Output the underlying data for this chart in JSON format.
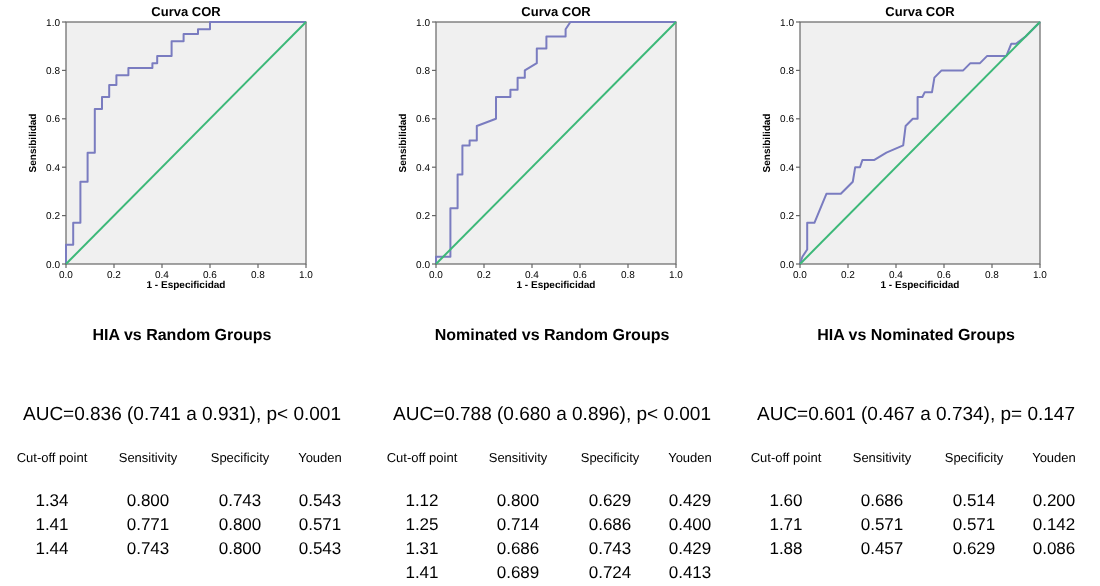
{
  "chart_data": [
    {
      "type": "line",
      "title": "Curva COR",
      "subtitle": "HIA vs Random  Groups",
      "xlabel": "1 - Especificidad",
      "ylabel": "Sensibilidad",
      "xlim": [
        0,
        1
      ],
      "ylim": [
        0,
        1
      ],
      "xticks": [
        {
          "value": 0,
          "label": "0.0"
        },
        {
          "value": 0.2,
          "label": "0.2"
        },
        {
          "value": 0.4,
          "label": "0.4"
        },
        {
          "value": 0.6,
          "label": "0.6"
        },
        {
          "value": 0.8,
          "label": "0.8"
        },
        {
          "value": 1,
          "label": "1.0"
        }
      ],
      "yticks": [
        {
          "value": 0,
          "label": "0.0"
        },
        {
          "value": 0.2,
          "label": "0.2"
        },
        {
          "value": 0.4,
          "label": "0.4"
        },
        {
          "value": 0.6,
          "label": "0.6"
        },
        {
          "value": 0.8,
          "label": "0.8"
        },
        {
          "value": 1,
          "label": "1.0"
        }
      ],
      "series": [
        {
          "color": "#7a7cc0",
          "x": [
            0,
            0,
            0.03,
            0.03,
            0.06,
            0.06,
            0.09,
            0.09,
            0.12,
            0.12,
            0.15,
            0.15,
            0.18,
            0.18,
            0.21,
            0.21,
            0.26,
            0.26,
            0.36,
            0.36,
            0.38,
            0.38,
            0.44,
            0.44,
            0.49,
            0.49,
            0.55,
            0.55,
            0.6,
            0.6,
            1
          ],
          "values": [
            0,
            0.08,
            0.08,
            0.17,
            0.17,
            0.34,
            0.34,
            0.46,
            0.46,
            0.64,
            0.64,
            0.69,
            0.69,
            0.74,
            0.74,
            0.78,
            0.78,
            0.81,
            0.81,
            0.83,
            0.83,
            0.86,
            0.86,
            0.92,
            0.92,
            0.95,
            0.95,
            0.97,
            0.97,
            1,
            1
          ]
        },
        {
          "color": "#3cb878",
          "x": [
            0,
            1
          ],
          "values": [
            0,
            1
          ]
        }
      ],
      "annotations": [
        "AUC=0.836 (0.741 a 0.931), p< 0.001",
        "Cut-off point",
        "Sensitivity",
        "Specificity",
        "Youden",
        "1.34",
        "0.800",
        "0.743",
        "0.543",
        "1.41",
        "0.771",
        "0.800",
        "0.571",
        "1.44",
        "0.743",
        "0.800",
        "0.543"
      ]
    },
    {
      "type": "line",
      "title": "Curva COR",
      "subtitle": "Nominated  vs Random  Groups",
      "xlabel": "1 - Especificidad",
      "ylabel": "Sensibilidad",
      "xlim": [
        0,
        1
      ],
      "ylim": [
        0,
        1
      ],
      "xticks": [
        {
          "value": 0,
          "label": "0.0"
        },
        {
          "value": 0.2,
          "label": "0.2"
        },
        {
          "value": 0.4,
          "label": "0.4"
        },
        {
          "value": 0.6,
          "label": "0.6"
        },
        {
          "value": 0.8,
          "label": "0.8"
        },
        {
          "value": 1,
          "label": "1.0"
        }
      ],
      "yticks": [
        {
          "value": 0,
          "label": "0.0"
        },
        {
          "value": 0.2,
          "label": "0.2"
        },
        {
          "value": 0.4,
          "label": "0.4"
        },
        {
          "value": 0.6,
          "label": "0.6"
        },
        {
          "value": 0.8,
          "label": "0.8"
        },
        {
          "value": 1,
          "label": "1.0"
        }
      ],
      "series": [
        {
          "color": "#7a7cc0",
          "x": [
            0,
            0,
            0.06,
            0.06,
            0.09,
            0.09,
            0.11,
            0.11,
            0.14,
            0.14,
            0.17,
            0.17,
            0.25,
            0.25,
            0.31,
            0.31,
            0.34,
            0.34,
            0.37,
            0.37,
            0.42,
            0.42,
            0.46,
            0.46,
            0.54,
            0.54,
            0.56,
            1
          ],
          "values": [
            0,
            0.03,
            0.03,
            0.23,
            0.23,
            0.37,
            0.37,
            0.49,
            0.49,
            0.51,
            0.51,
            0.57,
            0.6,
            0.69,
            0.69,
            0.72,
            0.72,
            0.77,
            0.77,
            0.8,
            0.83,
            0.89,
            0.89,
            0.94,
            0.94,
            0.97,
            1,
            1
          ]
        },
        {
          "color": "#3cb878",
          "x": [
            0,
            1
          ],
          "values": [
            0,
            1
          ]
        }
      ],
      "annotations": [
        "AUC=0.788 (0.680 a 0.896), p< 0.001",
        "Cut-off point",
        "Sensitivity",
        "Specificity",
        "Youden",
        "1.12",
        "0.800",
        "0.629",
        "0.429",
        "1.25",
        "0.714",
        "0.686",
        "0.400",
        "1.31",
        "0.686",
        "0.743",
        "0.429",
        "1.41",
        "0.689",
        "0.724",
        "0.413"
      ]
    },
    {
      "type": "line",
      "title": "Curva COR",
      "subtitle": "HIA vs Nominated  Groups",
      "xlabel": "1 - Especificidad",
      "ylabel": "Sensibilidad",
      "xlim": [
        0,
        1
      ],
      "ylim": [
        0,
        1
      ],
      "xticks": [
        {
          "value": 0,
          "label": "0.0"
        },
        {
          "value": 0.2,
          "label": "0.2"
        },
        {
          "value": 0.4,
          "label": "0.4"
        },
        {
          "value": 0.6,
          "label": "0.6"
        },
        {
          "value": 0.8,
          "label": "0.8"
        },
        {
          "value": 1,
          "label": "1.0"
        }
      ],
      "yticks": [
        {
          "value": 0,
          "label": "0.0"
        },
        {
          "value": 0.2,
          "label": "0.2"
        },
        {
          "value": 0.4,
          "label": "0.4"
        },
        {
          "value": 0.6,
          "label": "0.6"
        },
        {
          "value": 0.8,
          "label": "0.8"
        },
        {
          "value": 1,
          "label": "1.0"
        }
      ],
      "series": [
        {
          "color": "#7a7cc0",
          "x": [
            0,
            0.01,
            0.03,
            0.03,
            0.06,
            0.11,
            0.17,
            0.22,
            0.23,
            0.25,
            0.26,
            0.31,
            0.36,
            0.43,
            0.44,
            0.47,
            0.49,
            0.49,
            0.51,
            0.52,
            0.55,
            0.56,
            0.59,
            0.68,
            0.71,
            0.75,
            0.78,
            0.86,
            0.88,
            0.9,
            0.94,
            0.97,
            1
          ],
          "values": [
            0,
            0.03,
            0.06,
            0.17,
            0.17,
            0.29,
            0.29,
            0.34,
            0.4,
            0.4,
            0.43,
            0.43,
            0.46,
            0.49,
            0.57,
            0.6,
            0.6,
            0.69,
            0.69,
            0.71,
            0.71,
            0.77,
            0.8,
            0.8,
            0.83,
            0.83,
            0.86,
            0.86,
            0.91,
            0.91,
            0.94,
            0.97,
            1
          ]
        },
        {
          "color": "#3cb878",
          "x": [
            0,
            1
          ],
          "values": [
            0,
            1
          ]
        }
      ],
      "annotations": [
        "AUC=0.601 (0.467 a 0.734), p= 0.147",
        "Cut-off point",
        "Sensitivity",
        "Specificity",
        "Youden",
        "1.60",
        "0.686",
        "0.514",
        "0.200",
        "1.71",
        "0.571",
        "0.571",
        "0.142",
        "1.88",
        "0.457",
        "0.629",
        "0.086"
      ]
    }
  ]
}
